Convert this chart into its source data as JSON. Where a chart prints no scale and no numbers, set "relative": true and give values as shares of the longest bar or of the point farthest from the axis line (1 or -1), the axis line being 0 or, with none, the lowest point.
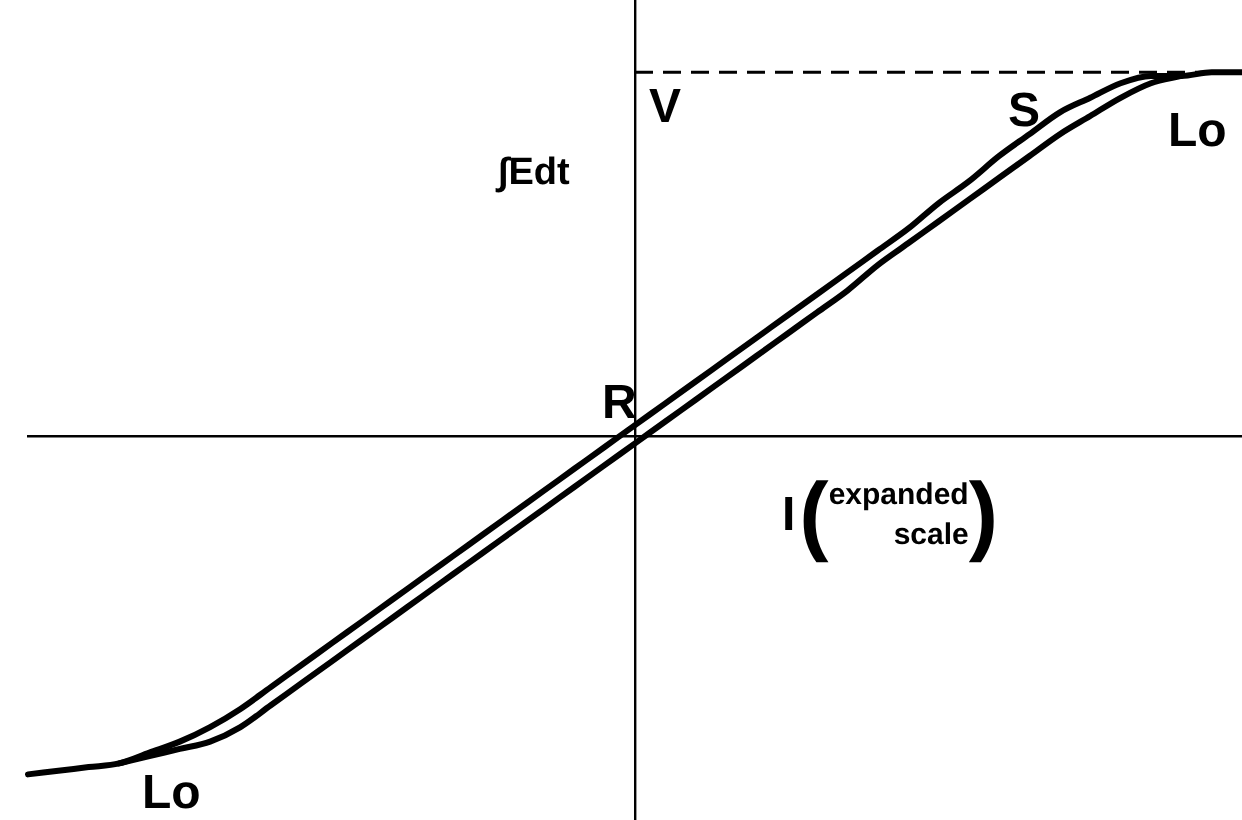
{
  "chart_data": {
    "type": "line",
    "relative": true,
    "xlabel": "I(expanded scale)",
    "ylabel": "∫Edt",
    "categories": [
      null,
      null,
      null,
      null,
      null,
      null,
      null,
      null,
      null,
      null,
      null,
      null,
      null,
      null,
      null,
      null,
      null,
      null,
      null,
      null,
      null,
      null,
      null,
      null,
      null,
      null,
      null,
      null,
      null,
      null,
      null,
      null,
      null,
      null,
      null,
      null,
      null,
      null,
      null,
      null,
      null
    ],
    "series": [
      {
        "color": "#000000",
        "values": [
          -0.93,
          -0.92,
          -0.91,
          -0.9,
          -0.87,
          -0.84,
          -0.8,
          -0.75,
          -0.69,
          -0.63,
          -0.57,
          -0.51,
          -0.45,
          -0.39,
          -0.33,
          -0.27,
          -0.21,
          -0.15,
          -0.09,
          -0.03,
          0.03,
          0.09,
          0.15,
          0.21,
          0.27,
          0.33,
          0.39,
          0.45,
          0.51,
          0.57,
          0.64,
          0.7,
          0.77,
          0.83,
          0.89,
          0.93,
          0.97,
          0.99,
          0.99,
          1,
          1
        ]
      },
      {
        "color": "#000000",
        "values": [
          null,
          null,
          null,
          -0.9,
          -0.88,
          -0.86,
          -0.84,
          -0.8,
          -0.74,
          -0.68,
          -0.62,
          -0.56,
          -0.5,
          -0.44,
          -0.38,
          -0.32,
          -0.26,
          -0.2,
          -0.14,
          -0.08,
          -0.02,
          0.04,
          0.1,
          0.16,
          0.22,
          0.28,
          0.34,
          0.4,
          0.47,
          0.53,
          0.59,
          0.65,
          0.71,
          0.77,
          0.83,
          0.88,
          0.93,
          0.97,
          0.99,
          null,
          null
        ]
      }
    ],
    "ref_lines": [
      {
        "axis": "y",
        "value": 1,
        "label": "V",
        "color": "#000000",
        "line_style": "dashed"
      }
    ],
    "annotations": [
      "S",
      "Lo",
      "R",
      "Lo"
    ],
    "tick_labels": false
  }
}
